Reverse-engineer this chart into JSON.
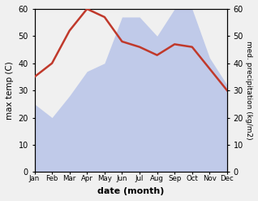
{
  "months": [
    "Jan",
    "Feb",
    "Mar",
    "Apr",
    "May",
    "Jun",
    "Jul",
    "Aug",
    "Sep",
    "Oct",
    "Nov",
    "Dec"
  ],
  "max_temp": [
    35,
    40,
    52,
    60,
    57,
    48,
    46,
    43,
    47,
    46,
    38,
    30
  ],
  "precipitation": [
    25,
    20,
    28,
    37,
    40,
    57,
    57,
    50,
    60,
    60,
    42,
    32
  ],
  "temp_color": "#c0392b",
  "precip_fill_color": "#b8c4e8",
  "temp_ylim": [
    0,
    60
  ],
  "precip_ylim": [
    0,
    60
  ],
  "xlabel": "date (month)",
  "ylabel_left": "max temp (C)",
  "ylabel_right": "med. precipitation (kg/m2)",
  "bg_color": "#f0f0f0",
  "plot_bg_color": "#ffffff"
}
